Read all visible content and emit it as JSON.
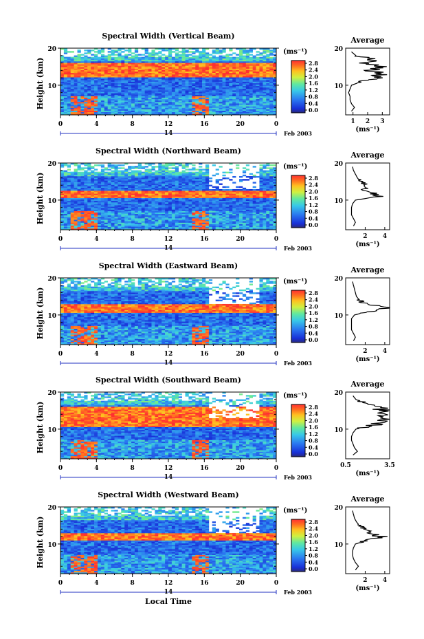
{
  "figure": {
    "time_axis_title": "Local Time",
    "date_label": "Feb 2003",
    "day_label": "14",
    "height_axis_label": "Height (km)",
    "colorbar_unit": "(ms⁻¹)",
    "colorbar_ticks": [
      "2.8",
      "2.4",
      "2.0",
      "1.6",
      "1.2",
      "0.8",
      "0.4",
      "0.0"
    ],
    "average_title": "Average",
    "average_unit": "(ms⁻¹)",
    "colors": {
      "background": "#ffffff",
      "axis": "#000000",
      "jet_low": "#2a2a7a",
      "jet_mid": "#38c8e8",
      "jet_high": "#ff3030",
      "time_marker": "#2030c0"
    }
  },
  "chart_data": [
    {
      "type": "heatmap",
      "title": "Spectral Width (Vertical Beam)",
      "xlabel": "Local Time",
      "ylabel": "Height (km)",
      "xlim": [
        0,
        24
      ],
      "ylim": [
        2,
        20
      ],
      "x_ticks": [
        "0",
        "4",
        "8",
        "12",
        "16",
        "20",
        "0"
      ],
      "y_ticks": [
        "20",
        "10"
      ],
      "colorbar": {
        "label": "(ms⁻¹)",
        "range": [
          0,
          3.0
        ],
        "ticks": [
          "2.8",
          "2.4",
          "2.0",
          "1.6",
          "1.2",
          "0.8",
          "0.4",
          "0.0"
        ]
      },
      "high_width_layer_km": [
        12,
        16
      ],
      "average_profile": {
        "title": "Average",
        "xlabel": "(ms⁻¹)",
        "x_ticks": [
          "1",
          "2",
          "3"
        ],
        "xlim": [
          0.5,
          3.5
        ],
        "ylim": [
          2,
          20
        ],
        "height_km": [
          3,
          4,
          5,
          6,
          7,
          8,
          9,
          10,
          11,
          12,
          13,
          14,
          15,
          16,
          17,
          18,
          19
        ],
        "width_ms": [
          0.9,
          1.1,
          0.9,
          0.8,
          0.8,
          0.7,
          0.8,
          0.9,
          1.6,
          2.6,
          3.0,
          2.2,
          3.1,
          1.8,
          2.4,
          1.2,
          0.9
        ]
      }
    },
    {
      "type": "heatmap",
      "title": "Spectral Width (Northward Beam)",
      "xlabel": "Local Time",
      "ylabel": "Height (km)",
      "xlim": [
        0,
        24
      ],
      "ylim": [
        2,
        20
      ],
      "x_ticks": [
        "0",
        "4",
        "8",
        "12",
        "16",
        "20",
        "0"
      ],
      "y_ticks": [
        "20",
        "10"
      ],
      "colorbar": {
        "label": "(ms⁻¹)",
        "range": [
          0,
          3.0
        ],
        "ticks": [
          "2.8",
          "2.4",
          "2.0",
          "1.6",
          "1.2",
          "0.8",
          "0.4",
          "0.0"
        ]
      },
      "high_width_layer_km": [
        10.5,
        12.5
      ],
      "average_profile": {
        "title": "Average",
        "xlabel": "(ms⁻¹)",
        "x_ticks": [
          "2",
          "4"
        ],
        "xlim": [
          0,
          4.5
        ],
        "ylim": [
          2,
          20
        ],
        "height_km": [
          3,
          4,
          5,
          6,
          7,
          8,
          9,
          10,
          11,
          12,
          13,
          14,
          15,
          16,
          17,
          18,
          19
        ],
        "width_ms": [
          0.8,
          1.0,
          0.8,
          0.6,
          0.6,
          0.6,
          0.7,
          1.0,
          3.6,
          2.8,
          1.9,
          2.1,
          1.5,
          1.2,
          1.0,
          0.8,
          0.7
        ]
      }
    },
    {
      "type": "heatmap",
      "title": "Spectral Width (Eastward Beam)",
      "xlabel": "Local Time",
      "ylabel": "Height (km)",
      "xlim": [
        0,
        24
      ],
      "ylim": [
        2,
        20
      ],
      "x_ticks": [
        "0",
        "4",
        "8",
        "12",
        "16",
        "20",
        "0"
      ],
      "y_ticks": [
        "20",
        "10"
      ],
      "colorbar": {
        "label": "(ms⁻¹)",
        "range": [
          0,
          3.0
        ],
        "ticks": [
          "2.8",
          "2.4",
          "2.0",
          "1.6",
          "1.2",
          "0.8",
          "0.4",
          "0.0"
        ]
      },
      "high_width_layer_km": [
        10.5,
        13
      ],
      "average_profile": {
        "title": "Average",
        "xlabel": "(ms⁻¹)",
        "x_ticks": [
          "2",
          "4"
        ],
        "xlim": [
          0,
          4.5
        ],
        "ylim": [
          2,
          20
        ],
        "height_km": [
          3,
          4,
          5,
          6,
          7,
          8,
          9,
          10,
          11,
          12,
          13,
          14,
          15,
          16,
          17,
          18,
          19
        ],
        "width_ms": [
          0.8,
          1.0,
          0.8,
          0.6,
          0.6,
          0.6,
          0.6,
          0.9,
          2.5,
          4.1,
          2.0,
          1.4,
          1.1,
          1.0,
          0.9,
          0.8,
          0.7
        ]
      }
    },
    {
      "type": "heatmap",
      "title": "Spectral Width (Southward Beam)",
      "xlabel": "Local Time",
      "ylabel": "Height (km)",
      "xlim": [
        0,
        24
      ],
      "ylim": [
        2,
        20
      ],
      "x_ticks": [
        "0",
        "4",
        "8",
        "12",
        "16",
        "20",
        "0"
      ],
      "y_ticks": [
        "20",
        "10"
      ],
      "colorbar": {
        "label": "(ms⁻¹)",
        "range": [
          0,
          3.0
        ],
        "ticks": [
          "2.8",
          "2.4",
          "2.0",
          "1.6",
          "1.2",
          "0.8",
          "0.4",
          "0.0"
        ]
      },
      "high_width_layer_km": [
        10.5,
        16
      ],
      "average_profile": {
        "title": "Average",
        "xlabel": "(ms⁻¹)",
        "x_ticks": [
          "0.5",
          "3.5"
        ],
        "xlim": [
          0.5,
          3.5
        ],
        "ylim": [
          2,
          20
        ],
        "height_km": [
          3,
          4,
          5,
          6,
          7,
          8,
          9,
          10,
          11,
          12,
          13,
          14,
          15,
          16,
          17,
          18,
          19
        ],
        "width_ms": [
          1.0,
          1.3,
          1.1,
          1.0,
          0.9,
          0.9,
          1.0,
          1.2,
          2.4,
          2.8,
          3.1,
          2.9,
          3.2,
          2.6,
          1.8,
          1.2,
          1.0
        ]
      }
    },
    {
      "type": "heatmap",
      "title": "Spectral Width (Westward Beam)",
      "xlabel": "Local Time",
      "ylabel": "Height (km)",
      "xlim": [
        0,
        24
      ],
      "ylim": [
        2,
        20
      ],
      "x_ticks": [
        "0",
        "4",
        "8",
        "12",
        "16",
        "20",
        "0"
      ],
      "y_ticks": [
        "20",
        "10"
      ],
      "colorbar": {
        "label": "(ms⁻¹)",
        "range": [
          0,
          3.0
        ],
        "ticks": [
          "2.8",
          "2.4",
          "2.0",
          "1.6",
          "1.2",
          "0.8",
          "0.4",
          "0.0"
        ]
      },
      "high_width_layer_km": [
        11,
        13
      ],
      "average_profile": {
        "title": "Average",
        "xlabel": "(ms⁻¹)",
        "x_ticks": [
          "2",
          "4"
        ],
        "xlim": [
          0,
          4.5
        ],
        "ylim": [
          2,
          20
        ],
        "height_km": [
          3,
          4,
          5,
          6,
          7,
          8,
          9,
          10,
          11,
          12,
          13,
          14,
          15,
          16,
          17,
          18,
          19
        ],
        "width_ms": [
          1.0,
          1.3,
          1.0,
          0.8,
          0.7,
          0.7,
          0.8,
          1.0,
          2.2,
          3.6,
          2.4,
          1.8,
          1.4,
          1.1,
          0.9,
          0.8,
          0.7
        ]
      }
    }
  ]
}
